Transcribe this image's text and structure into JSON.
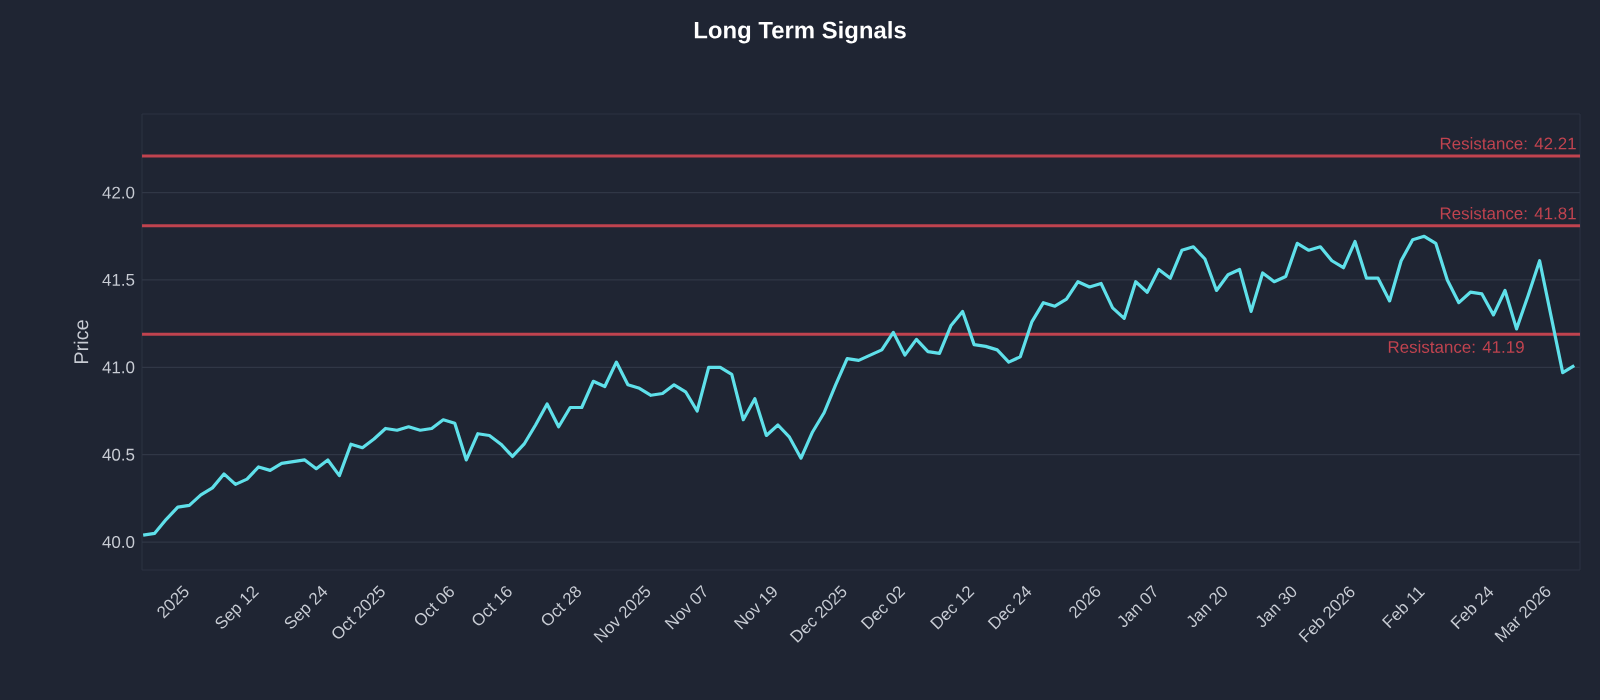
{
  "chart_data": {
    "type": "line",
    "title": "Long Term Signals",
    "ylabel": "Price",
    "categories": [
      null,
      null,
      null,
      "2025",
      null,
      null,
      null,
      null,
      null,
      "Sep 12",
      null,
      null,
      null,
      null,
      null,
      "Sep 24",
      null,
      null,
      null,
      null,
      "Oct 2025",
      null,
      null,
      null,
      null,
      null,
      "Oct 06",
      null,
      null,
      null,
      null,
      "Oct 16",
      null,
      null,
      null,
      null,
      null,
      "Oct 28",
      null,
      null,
      null,
      null,
      null,
      "Nov 2025",
      null,
      null,
      null,
      null,
      "Nov 07",
      null,
      null,
      null,
      null,
      null,
      "Nov 19",
      null,
      null,
      null,
      null,
      null,
      "Dec 2025",
      null,
      null,
      null,
      null,
      "Dec 02",
      null,
      null,
      null,
      null,
      null,
      "Dec 12",
      null,
      null,
      null,
      null,
      "Dec 24",
      null,
      null,
      null,
      null,
      null,
      "2026",
      null,
      null,
      null,
      null,
      "Jan 07",
      null,
      null,
      null,
      null,
      null,
      "Jan 20",
      null,
      null,
      null,
      null,
      null,
      "Jan 30",
      null,
      null,
      null,
      null,
      "Feb 2026",
      null,
      null,
      null,
      null,
      null,
      "Feb 11",
      null,
      null,
      null,
      null,
      null,
      "Feb 24",
      null,
      null,
      null,
      null,
      "Mar 2026",
      null,
      null,
      null
    ],
    "series": [
      {
        "color": "#5fe0ea",
        "values": [
          40.04,
          40.05,
          40.13,
          40.2,
          40.21,
          40.27,
          40.31,
          40.39,
          40.33,
          40.36,
          40.43,
          40.41,
          40.45,
          40.46,
          40.47,
          40.42,
          40.47,
          40.38,
          40.56,
          40.54,
          40.59,
          40.65,
          40.64,
          40.66,
          40.64,
          40.65,
          40.7,
          40.68,
          40.47,
          40.62,
          40.61,
          40.56,
          40.49,
          40.56,
          40.67,
          40.79,
          40.66,
          40.77,
          40.77,
          40.92,
          40.89,
          41.03,
          40.9,
          40.88,
          40.84,
          40.85,
          40.9,
          40.86,
          40.75,
          41.0,
          41.0,
          40.96,
          40.7,
          40.82,
          40.61,
          40.67,
          40.6,
          40.48,
          40.63,
          40.74,
          40.9,
          41.05,
          41.04,
          41.07,
          41.1,
          41.2,
          41.07,
          41.16,
          41.09,
          41.08,
          41.24,
          41.32,
          41.13,
          41.12,
          41.1,
          41.03,
          41.06,
          41.26,
          41.37,
          41.35,
          41.39,
          41.49,
          41.46,
          41.48,
          41.34,
          41.28,
          41.49,
          41.43,
          41.56,
          41.51,
          41.67,
          41.69,
          41.62,
          41.44,
          41.53,
          41.56,
          41.32,
          41.54,
          41.49,
          41.52,
          41.71,
          41.67,
          41.69,
          41.61,
          41.57,
          41.72,
          41.51,
          41.51,
          41.38,
          41.61,
          41.73,
          41.75,
          41.71,
          41.5,
          41.37,
          41.43,
          41.42,
          41.3,
          41.44,
          41.22,
          41.41,
          41.61,
          41.29,
          40.97,
          41.01
        ]
      }
    ],
    "ylim": [
      39.84,
      42.45
    ],
    "yticks": [
      {
        "value": 40.0,
        "label": "40.0"
      },
      {
        "value": 40.5,
        "label": "40.5"
      },
      {
        "value": 41.0,
        "label": "41.0"
      },
      {
        "value": 41.5,
        "label": "41.5"
      },
      {
        "value": 42.0,
        "label": "42.0"
      }
    ],
    "grid": "y",
    "marker": "none",
    "line_style": "solid",
    "ref_lines": [
      {
        "axis": "y",
        "value": 42.21,
        "label": "Resistance: 42.21",
        "color": "#c0434f"
      },
      {
        "axis": "y",
        "value": 41.81,
        "label": "Resistance: 41.81",
        "color": "#c0434f"
      },
      {
        "axis": "y",
        "value": 41.19,
        "label": "Resistance: 41.19",
        "color": "#c0434f"
      }
    ]
  }
}
